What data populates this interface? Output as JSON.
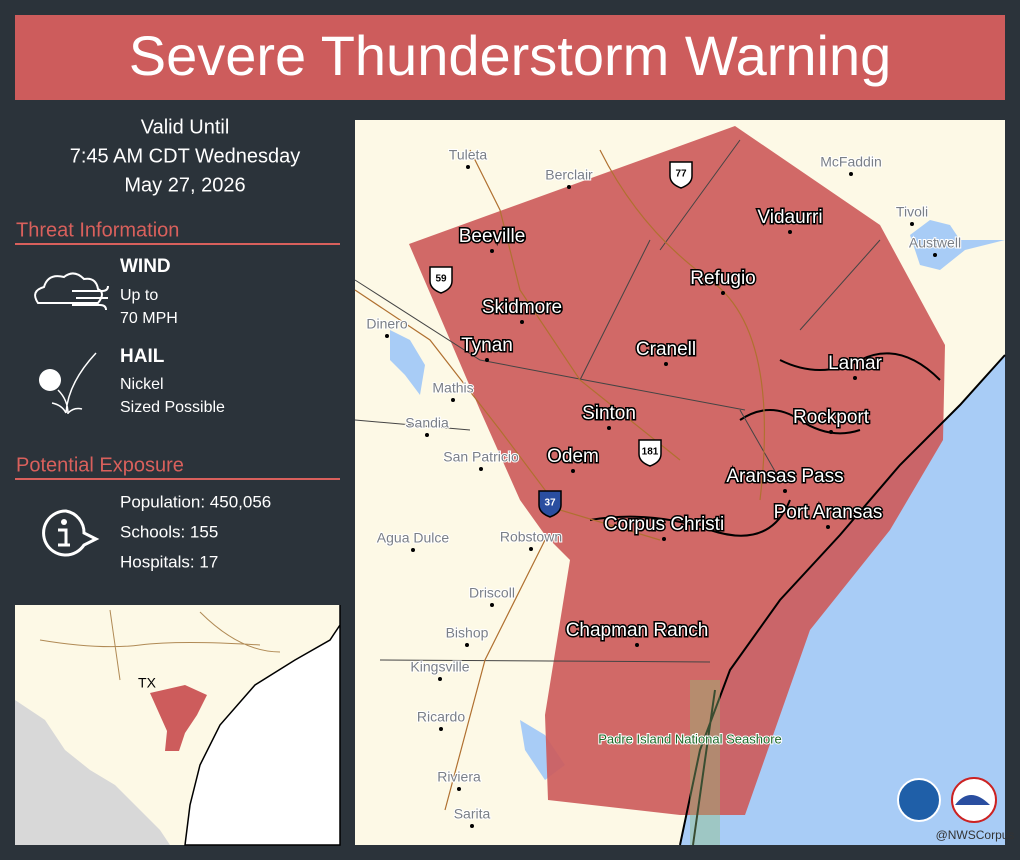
{
  "title": "Severe Thunderstorm Warning",
  "valid": [
    "Valid Until",
    "7:45 AM CDT Wednesday",
    "May 27, 2026"
  ],
  "threat": {
    "heading": "Threat Information",
    "items": [
      {
        "label": "WIND",
        "lines": [
          "Up to",
          "70  MPH"
        ]
      },
      {
        "label": "HAIL",
        "lines": [
          "Nickel",
          "Sized Possible"
        ]
      }
    ]
  },
  "exposure": {
    "heading": "Potential Exposure",
    "lines": [
      "Population: 450,056",
      "Schools: 155",
      "Hospitals: 17"
    ]
  },
  "inset": {
    "label": "TX"
  },
  "map": {
    "major_places": [
      "Beeville",
      "Skidmore",
      "Tynan",
      "Refugio",
      "Vidaurri",
      "Cranell",
      "Lamar",
      "Sinton",
      "Rockport",
      "Odem",
      "Aransas Pass",
      "Port Aransas",
      "Corpus Christi",
      "Chapman Ranch"
    ],
    "minor_places": [
      "Tuleta",
      "Berclair",
      "McFaddin",
      "Tivoli",
      "Austwell",
      "Dinero",
      "Mathis",
      "Sandia",
      "San Patricio",
      "Agua Dulce",
      "Robstown",
      "Driscoll",
      "Bishop",
      "Kingsville",
      "Ricardo",
      "Riviera",
      "Sarita"
    ],
    "routes": [
      "77",
      "59",
      "181",
      "37"
    ],
    "park": "Padre Island National Seashore",
    "credit": "@NWSCorpus"
  }
}
